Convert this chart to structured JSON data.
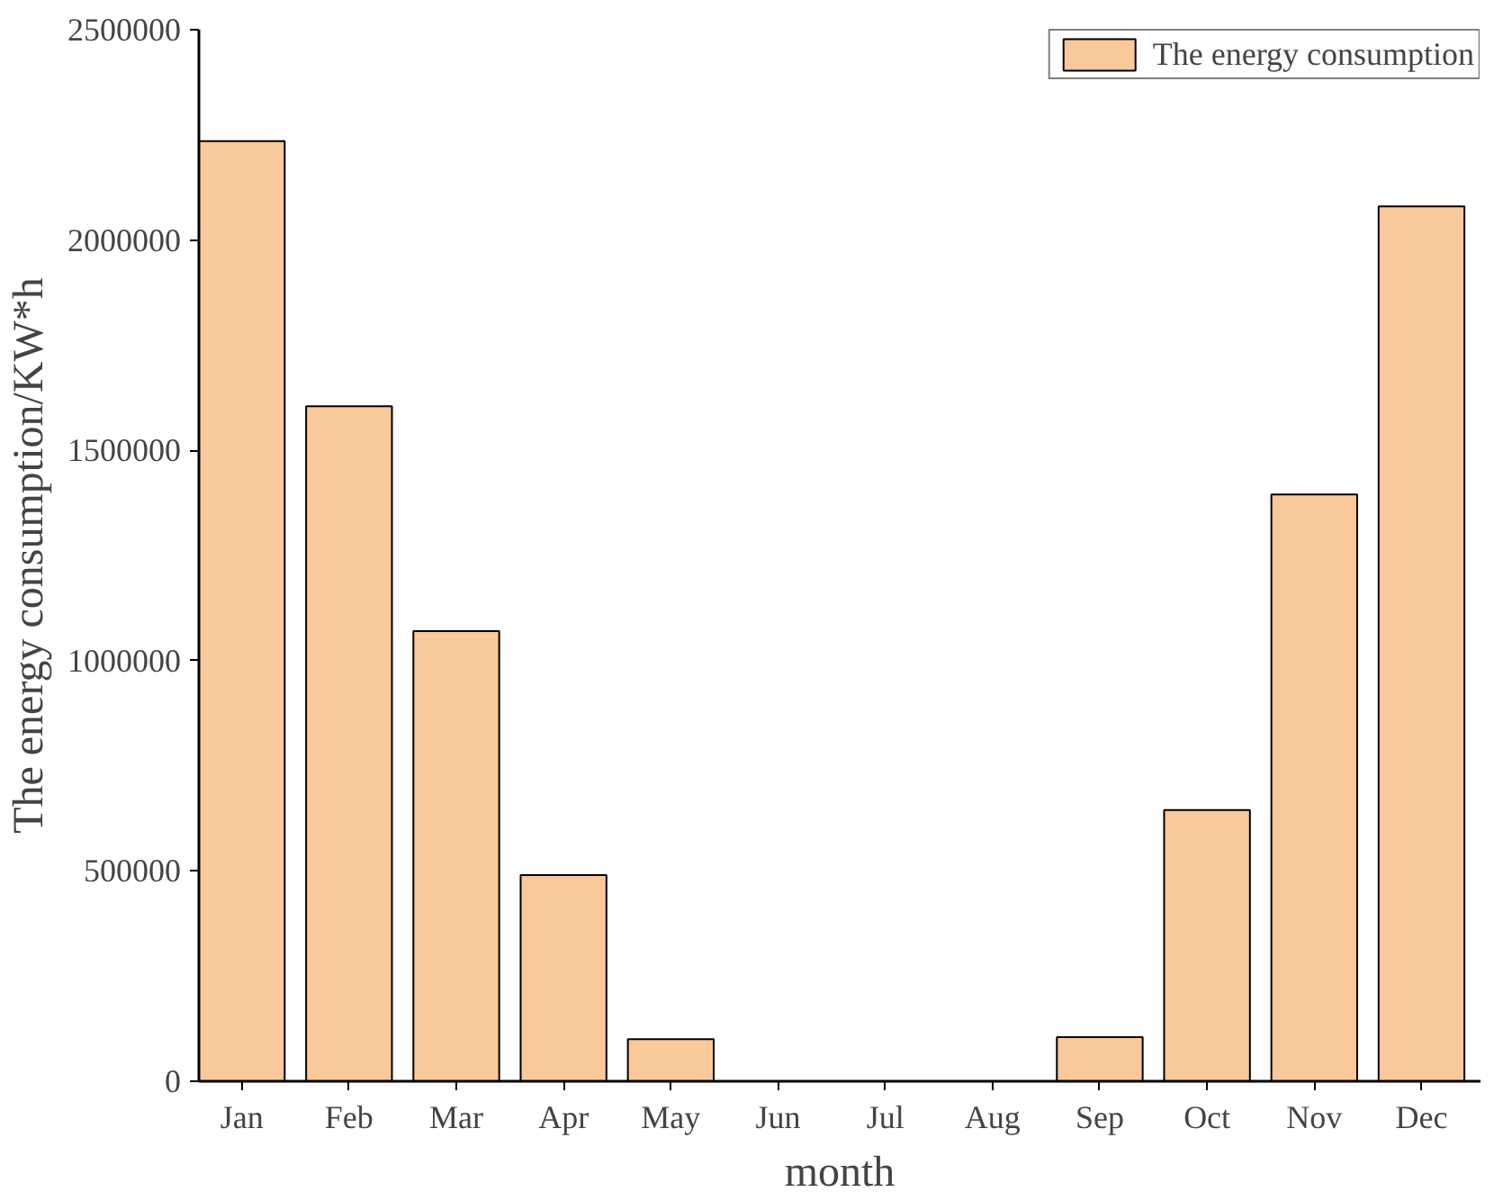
{
  "chart_data": {
    "type": "bar",
    "xlabel": "month",
    "ylabel": "The energy consumption/KW*h",
    "categories": [
      "Jan",
      "Feb",
      "Mar",
      "Apr",
      "May",
      "Jun",
      "Jul",
      "Aug",
      "Sep",
      "Oct",
      "Nov",
      "Dec"
    ],
    "series": [
      {
        "name": "The energy consumption",
        "color": "#f9c89b",
        "values": [
          2235000,
          1605000,
          1070000,
          490000,
          100000,
          0,
          0,
          0,
          105000,
          645000,
          1395000,
          2080000
        ]
      }
    ],
    "ylim": [
      0,
      2500000
    ],
    "yticks": [
      0,
      500000,
      1000000,
      1500000,
      2000000,
      2500000
    ],
    "grid": false,
    "legend": "top right"
  }
}
